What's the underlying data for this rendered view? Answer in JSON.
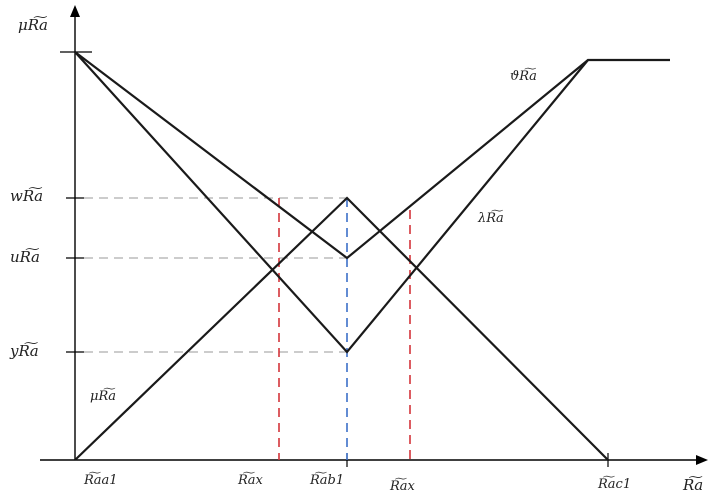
{
  "y_axis_title": "μR͠a",
  "x_axis_title": "R͠a",
  "y_labels": {
    "w": "wR͠a",
    "u": "uR͠a",
    "y": "yR͠a"
  },
  "x_labels": {
    "a1": "R͠aa1",
    "x_left": "R͠ax",
    "b1": "R͠ab1",
    "x_right": "R͠ax",
    "c1": "R͠ac1"
  },
  "curve_labels": {
    "theta": "ϑR͠a",
    "lambda": "λR͠a",
    "mu": "μR͠a"
  }
}
